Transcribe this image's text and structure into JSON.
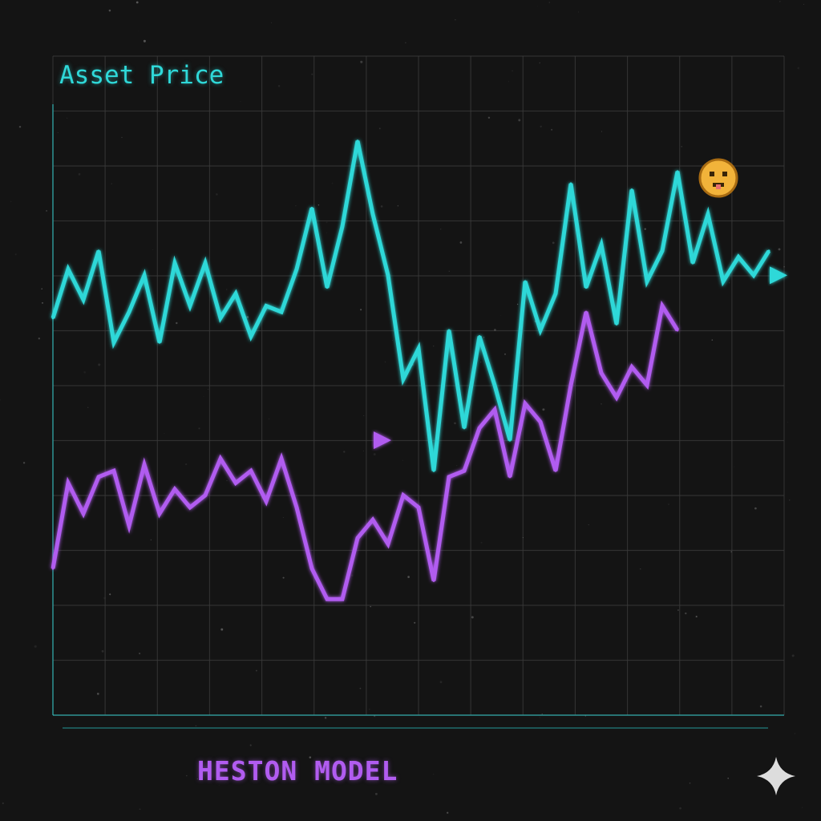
{
  "labels": {
    "series_label": "Asset Price",
    "model_name": "HESTON MODEL"
  },
  "icons": {
    "face": "face-emoji-icon",
    "sparkle": "sparkle-icon"
  },
  "colors": {
    "background": "#141414",
    "grid": "#3a3a3a",
    "price": "#2fd8d8",
    "volatility": "#b15cf0",
    "face": "#f2b33a",
    "sparkle": "#dddddd"
  },
  "chart_data": {
    "type": "line",
    "title": "",
    "xlabel": "",
    "ylabel": "",
    "grid": true,
    "xlim": [
      0,
      48
    ],
    "ylim": [
      0,
      100
    ],
    "series": [
      {
        "name": "Asset Price",
        "color": "#2fd8d8",
        "points": [
          [
            0,
            65
          ],
          [
            1,
            73
          ],
          [
            2,
            68
          ],
          [
            3,
            76
          ],
          [
            4,
            61
          ],
          [
            5,
            66
          ],
          [
            6,
            72
          ],
          [
            7,
            61
          ],
          [
            8,
            74
          ],
          [
            9,
            67
          ],
          [
            10,
            74
          ],
          [
            11,
            65
          ],
          [
            12,
            69
          ],
          [
            13,
            62
          ],
          [
            14,
            67
          ],
          [
            15,
            66
          ],
          [
            16,
            73
          ],
          [
            17,
            83
          ],
          [
            18,
            70
          ],
          [
            19,
            80
          ],
          [
            20,
            94
          ],
          [
            21,
            82
          ],
          [
            22,
            72
          ],
          [
            23,
            55
          ],
          [
            24,
            60
          ],
          [
            25,
            40
          ],
          [
            26,
            63
          ],
          [
            27,
            47
          ],
          [
            28,
            62
          ],
          [
            29,
            54
          ],
          [
            30,
            45
          ],
          [
            31,
            71
          ],
          [
            32,
            63
          ],
          [
            33,
            69
          ],
          [
            34,
            87
          ],
          [
            35,
            70
          ],
          [
            36,
            77
          ],
          [
            37,
            64
          ],
          [
            38,
            86
          ],
          [
            39,
            71
          ],
          [
            40,
            76
          ],
          [
            41,
            89
          ],
          [
            42,
            74
          ],
          [
            43,
            82
          ],
          [
            44,
            71
          ],
          [
            45,
            75
          ],
          [
            46,
            72
          ],
          [
            47,
            76
          ]
        ]
      },
      {
        "name": "",
        "color": "#b15cf0",
        "points": [
          [
            0,
            24
          ],
          [
            1,
            38
          ],
          [
            2,
            33
          ],
          [
            3,
            39
          ],
          [
            4,
            40
          ],
          [
            5,
            31
          ],
          [
            6,
            41
          ],
          [
            7,
            33
          ],
          [
            8,
            37
          ],
          [
            9,
            34
          ],
          [
            10,
            36
          ],
          [
            11,
            42
          ],
          [
            12,
            38
          ],
          [
            13,
            40
          ],
          [
            14,
            35
          ],
          [
            15,
            42
          ],
          [
            16,
            34
          ],
          [
            17,
            24
          ],
          [
            18,
            19
          ],
          [
            19,
            19
          ],
          [
            20,
            29
          ],
          [
            21,
            32
          ],
          [
            22,
            28
          ],
          [
            23,
            36
          ],
          [
            24,
            34
          ],
          [
            25,
            22
          ],
          [
            26,
            39
          ],
          [
            27,
            40
          ],
          [
            28,
            47
          ],
          [
            29,
            50
          ],
          [
            30,
            39
          ],
          [
            31,
            51
          ],
          [
            32,
            48
          ],
          [
            33,
            40
          ],
          [
            34,
            54
          ],
          [
            35,
            66
          ],
          [
            36,
            56
          ],
          [
            37,
            52
          ],
          [
            38,
            57
          ],
          [
            39,
            54
          ],
          [
            40,
            67
          ],
          [
            41,
            63
          ]
        ]
      }
    ],
    "reference_arrows": [
      {
        "name": "price-level-arrow",
        "color": "#2fd8d8",
        "x_start": 0,
        "x_end": 48,
        "y": 72
      },
      {
        "name": "volatility-level-arrow",
        "color": "#b15cf0",
        "x_start": 0,
        "x_end": 22,
        "y": 45
      }
    ]
  }
}
